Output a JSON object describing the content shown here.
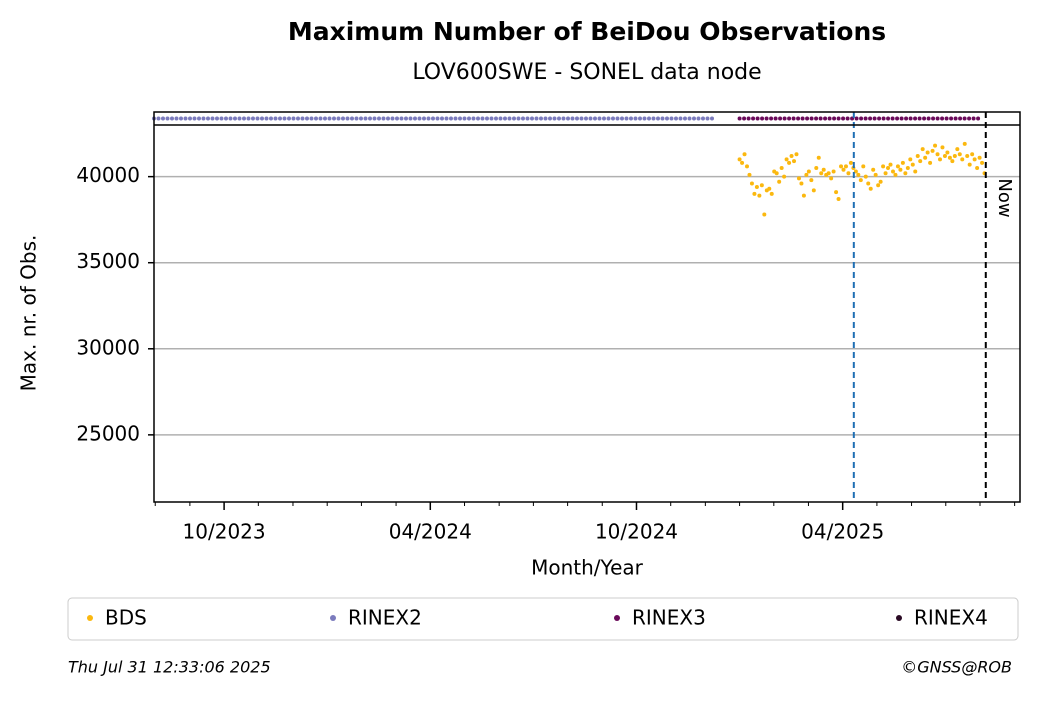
{
  "chart_data": {
    "type": "scatter",
    "title": "Maximum Number of BeiDou Observations",
    "subtitle": "LOV600SWE - SONEL data node",
    "xlabel": "Month/Year",
    "ylabel": "Max. nr. of Obs.",
    "xlim": [
      2023.58,
      2025.68
    ],
    "ylim": [
      21100,
      43000
    ],
    "xticks": [
      {
        "value": 2023.75,
        "label": "10/2023"
      },
      {
        "value": 2024.25,
        "label": "04/2024"
      },
      {
        "value": 2024.75,
        "label": "10/2024"
      },
      {
        "value": 2025.25,
        "label": "04/2025"
      }
    ],
    "xminorticks": [
      2023.583,
      2023.667,
      2023.833,
      2023.917,
      2024.0,
      2024.083,
      2024.167,
      2024.333,
      2024.417,
      2024.5,
      2024.583,
      2024.667,
      2024.833,
      2024.917,
      2025.0,
      2025.083,
      2025.167,
      2025.333,
      2025.417,
      2025.5,
      2025.583,
      2025.667
    ],
    "yticks": [
      25000,
      30000,
      35000,
      40000
    ],
    "grid": true,
    "series": [
      {
        "name": "BDS",
        "color": "#fbb80f",
        "x": [
          2025,
          2025.006,
          2025.012,
          2025.018,
          2025.024,
          2025.03,
          2025.036,
          2025.042,
          2025.048,
          2025.054,
          2025.06,
          2025.066,
          2025.072,
          2025.078,
          2025.084,
          2025.09,
          2025.096,
          2025.102,
          2025.108,
          2025.114,
          2025.12,
          2025.126,
          2025.132,
          2025.138,
          2025.144,
          2025.15,
          2025.156,
          2025.162,
          2025.168,
          2025.174,
          2025.18,
          2025.186,
          2025.192,
          2025.198,
          2025.204,
          2025.21,
          2025.216,
          2025.222,
          2025.228,
          2025.234,
          2025.24,
          2025.246,
          2025.252,
          2025.258,
          2025.264,
          2025.27,
          2025.276,
          2025.282,
          2025.288,
          2025.294,
          2025.3,
          2025.306,
          2025.312,
          2025.318,
          2025.324,
          2025.33,
          2025.336,
          2025.342,
          2025.348,
          2025.354,
          2025.36,
          2025.366,
          2025.372,
          2025.378,
          2025.384,
          2025.39,
          2025.396,
          2025.402,
          2025.408,
          2025.414,
          2025.42,
          2025.426,
          2025.432,
          2025.438,
          2025.444,
          2025.45,
          2025.456,
          2025.462,
          2025.468,
          2025.474,
          2025.48,
          2025.486,
          2025.492,
          2025.498,
          2025.504,
          2025.51,
          2025.516,
          2025.522,
          2025.528,
          2025.534,
          2025.54,
          2025.546,
          2025.552,
          2025.558,
          2025.564,
          2025.57,
          2025.576,
          2025.582,
          2025.588,
          2025.594
        ],
        "values": [
          41000,
          40800,
          41300,
          40600,
          40100,
          39600,
          39000,
          39400,
          38900,
          39500,
          37800,
          39200,
          39300,
          39000,
          40300,
          40200,
          39700,
          40500,
          40000,
          41000,
          40800,
          41200,
          40900,
          41300,
          39900,
          39600,
          38900,
          40100,
          40300,
          39800,
          39200,
          40500,
          41100,
          40200,
          40400,
          40100,
          40200,
          39900,
          40300,
          39100,
          38700,
          40600,
          40400,
          40600,
          40200,
          40800,
          40500,
          40300,
          40100,
          39800,
          40600,
          40000,
          39600,
          39300,
          40400,
          40100,
          39500,
          39700,
          40600,
          40200,
          40500,
          40700,
          40300,
          40100,
          40600,
          40400,
          40800,
          40200,
          40500,
          41000,
          40700,
          40300,
          41200,
          40900,
          41600,
          41100,
          41400,
          40800,
          41500,
          41800,
          41300,
          41000,
          41700,
          41200,
          41400,
          41100,
          40900,
          41200,
          41600,
          41300,
          41000,
          41900,
          41200,
          40700,
          41300,
          41000,
          40500,
          41100,
          40800,
          40200
        ]
      },
      {
        "name": "RINEX2",
        "color": "#7b7bbd",
        "span": [
          2023.58,
          2024.944
        ]
      },
      {
        "name": "RINEX3",
        "color": "#6a0a5a",
        "span": [
          2025.0,
          2025.583
        ]
      },
      {
        "name": "RINEX4",
        "color": "#2a0a24"
      }
    ],
    "vlines": [
      {
        "x": 2025.277,
        "color": "#1f6fb4"
      },
      {
        "x": 2025.597,
        "color": "#000000",
        "label": "Now"
      }
    ],
    "timestamp": "Thu Jul 31 12:33:06 2025",
    "credit": "©GNSS@ROB"
  }
}
